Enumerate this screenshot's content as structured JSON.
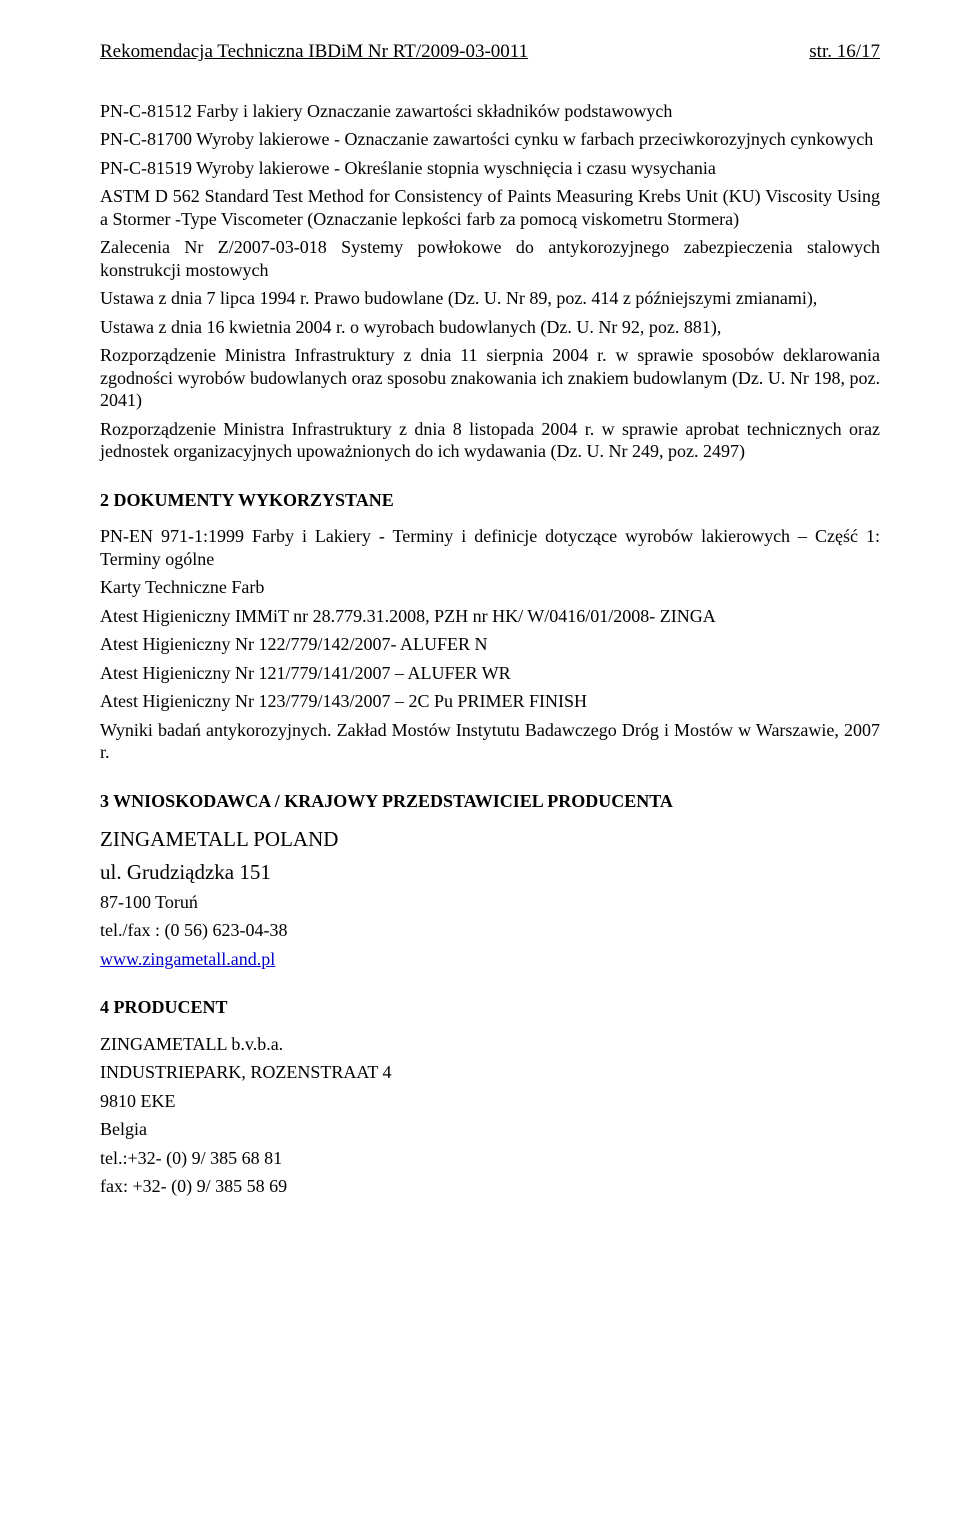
{
  "header": {
    "left": "Rekomendacja Techniczna IBDiM Nr RT/2009-03-0011",
    "right": "str. 16/17"
  },
  "body": {
    "p1": "PN-C-81512 Farby i lakiery Oznaczanie zawartości składników podstawowych",
    "p2": "PN-C-81700 Wyroby lakierowe - Oznaczanie zawartości cynku w farbach przeciwkorozyjnych cynkowych",
    "p3": "PN-C-81519 Wyroby lakierowe - Określanie stopnia wyschnięcia i czasu wysychania",
    "p4": "ASTM D 562 Standard Test Method for Consistency of Paints Measuring Krebs Unit (KU) Viscosity Using a Stormer -Type Viscometer (Oznaczanie lepkości farb za pomocą viskometru Stormera)",
    "p5": "Zalecenia  Nr Z/2007-03-018 Systemy powłokowe do antykorozyjnego zabezpieczenia stalowych konstrukcji mostowych",
    "p6": "Ustawa z dnia 7 lipca 1994 r. Prawo budowlane (Dz. U. Nr 89, poz. 414 z późniejszymi zmianami),",
    "p7": "Ustawa z dnia 16 kwietnia 2004 r. o wyrobach budowlanych (Dz. U. Nr 92, poz. 881),",
    "p8": "Rozporządzenie Ministra Infrastruktury z dnia 11 sierpnia 2004 r. w sprawie sposobów deklarowania zgodności wyrobów budowlanych oraz sposobu znakowania ich znakiem budowlanym (Dz. U.  Nr 198,  poz. 2041)",
    "p9": "Rozporządzenie Ministra Infrastruktury z dnia 8 listopada 2004 r. w sprawie aprobat technicznych oraz jednostek organizacyjnych upoważnionych do ich wydawania (Dz. U. Nr 249, poz. 2497)"
  },
  "sec2": {
    "title": "2  DOKUMENTY WYKORZYSTANE",
    "p1": "PN-EN 971-1:1999 Farby i Lakiery - Terminy i definicje dotyczące wyrobów lakierowych – Część 1: Terminy ogólne",
    "p2": "Karty Techniczne Farb",
    "p3": "Atest Higieniczny IMMiT nr 28.779.31.2008, PZH nr HK/ W/0416/01/2008- ZINGA",
    "p4": "Atest Higieniczny Nr 122/779/142/2007- ALUFER N",
    "p5": "Atest Higieniczny Nr 121/779/141/2007 – ALUFER WR",
    "p6": "Atest Higieniczny Nr 123/779/143/2007 – 2C Pu PRIMER FINISH",
    "p7": "Wyniki badań antykorozyjnych. Zakład Mostów Instytutu Badawczego Dróg i Mostów w Warszawie, 2007 r."
  },
  "sec3": {
    "title": "3  WNIOSKODAWCA / KRAJOWY PRZEDSTAWICIEL PRODUCENTA",
    "name": "ZINGAMETALL POLAND",
    "street": "ul. Grudziądzka 151",
    "city": "87-100 Toruń",
    "tel": "tel./fax : (0 56) 623-04-38",
    "link": "www.zingametall.and.pl"
  },
  "sec4": {
    "title": "4  PRODUCENT",
    "name": "ZINGAMETALL b.v.b.a.",
    "street": "INDUSTRIEPARK, ROZENSTRAAT 4",
    "city": "9810 EKE",
    "country": "Belgia",
    "tel": "tel.:+32- (0) 9/ 385 68 81",
    "fax": "fax: +32- (0) 9/ 385  58 69"
  }
}
